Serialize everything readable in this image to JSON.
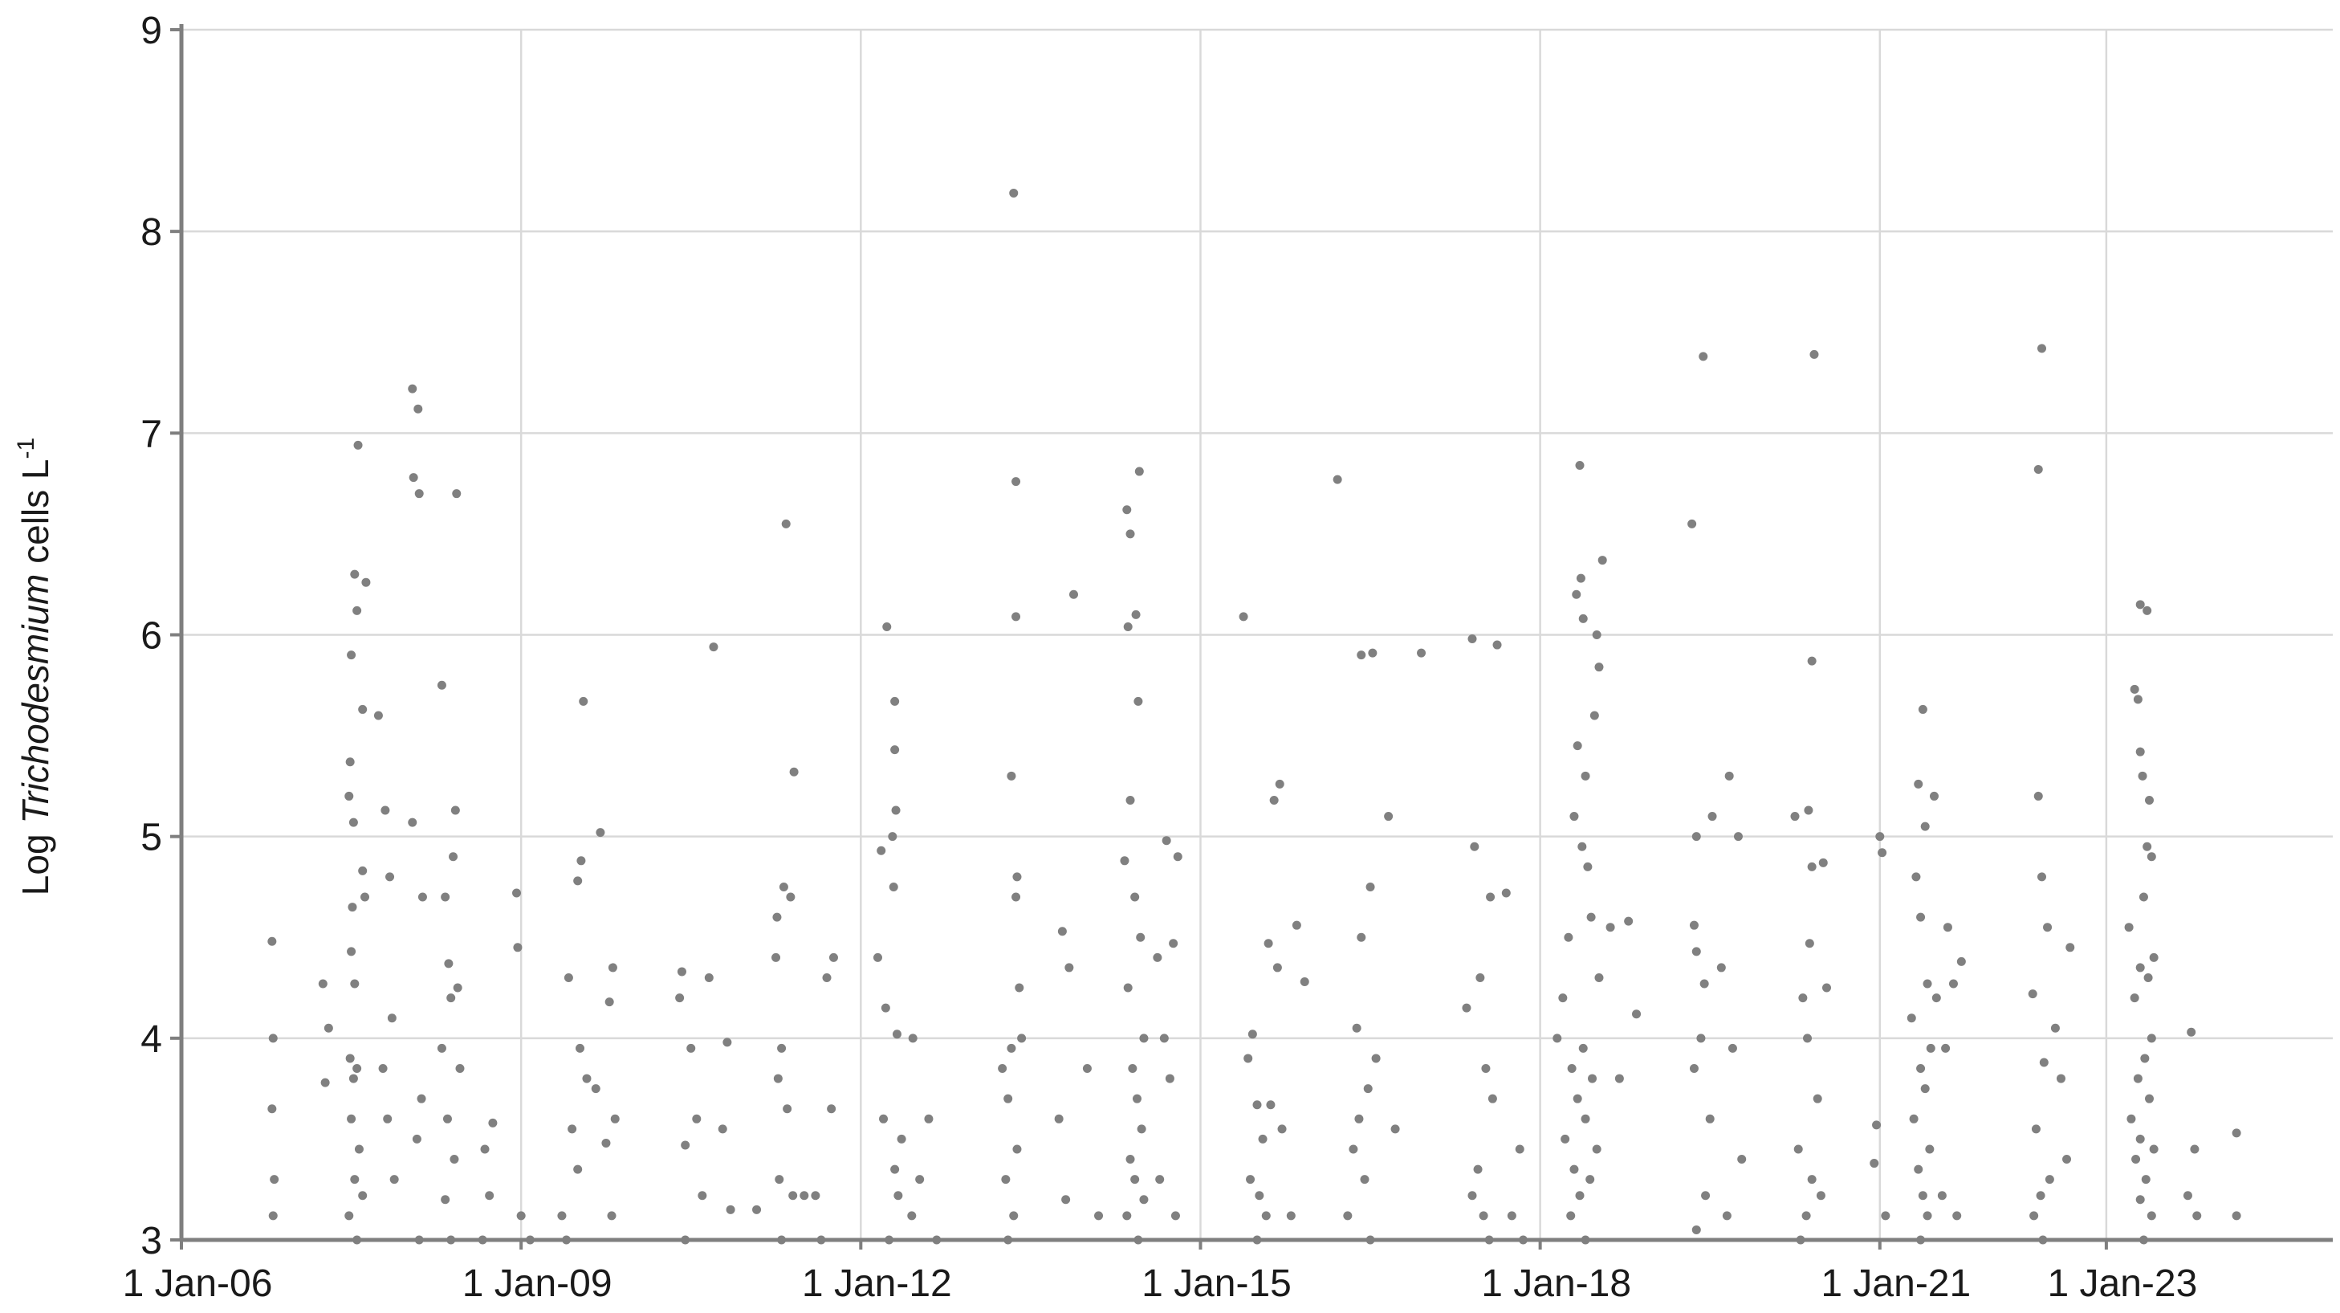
{
  "chart_data": {
    "type": "scatter",
    "y_label": {
      "prefix": "Log",
      "species": "Trichodesmium",
      "suffix": "cells L",
      "exponent": "-1"
    },
    "color": "#808080",
    "grid": true,
    "xlim": [
      2006,
      2025
    ],
    "ylim": [
      3,
      9
    ],
    "yticks": [
      3,
      4,
      5,
      6,
      7,
      8,
      9
    ],
    "xticks": [
      {
        "value": 2006,
        "label": "1 Jan-06"
      },
      {
        "value": 2009,
        "label": "1 Jan-09"
      },
      {
        "value": 2012,
        "label": "1 Jan-12"
      },
      {
        "value": 2015,
        "label": "1 Jan-15"
      },
      {
        "value": 2018,
        "label": "1 Jan-18"
      },
      {
        "value": 2021,
        "label": "1 Jan-21"
      },
      {
        "value": 2023,
        "label": "1 Jan-23"
      }
    ],
    "x": [
      2006.8,
      2006.81,
      2006.8,
      2006.82,
      2006.81,
      2007.25,
      2007.27,
      2007.3,
      2007.56,
      2007.53,
      2007.55,
      2007.5,
      2007.49,
      2007.48,
      2007.52,
      2007.6,
      2007.51,
      2007.5,
      2007.53,
      2007.49,
      2007.55,
      2007.52,
      2007.5,
      2007.57,
      2007.53,
      2007.6,
      2007.48,
      2007.55,
      2007.63,
      2007.6,
      2007.62,
      2007.74,
      2007.8,
      2007.84,
      2007.86,
      2007.78,
      2007.82,
      2007.88,
      2008.04,
      2008.09,
      2008.05,
      2008.1,
      2008.04,
      2008.13,
      2008.12,
      2008.08,
      2008.1,
      2008.3,
      2008.42,
      2008.4,
      2008.33,
      2008.36,
      2008.44,
      2008.38,
      2008.3,
      2008.46,
      2008.35,
      2008.41,
      2008.33,
      2008.38,
      2008.43,
      2008.75,
      2008.68,
      2008.72,
      2008.66,
      2008.96,
      2008.97,
      2009.0,
      2009.08,
      2009.55,
      2009.53,
      2009.5,
      2009.42,
      2009.52,
      2009.58,
      2009.45,
      2009.5,
      2009.36,
      2009.4,
      2009.7,
      2009.81,
      2009.78,
      2009.66,
      2009.83,
      2009.75,
      2009.8,
      2010.42,
      2010.4,
      2010.5,
      2010.55,
      2010.45,
      2010.6,
      2010.45,
      2010.7,
      2010.66,
      2010.82,
      2010.78,
      2010.85,
      2011.08,
      2011.32,
      2011.26,
      2011.25,
      2011.3,
      2011.27,
      2011.35,
      2011.28,
      2011.4,
      2011.3,
      2011.34,
      2011.41,
      2011.38,
      2011.5,
      2011.76,
      2011.7,
      2011.74,
      2011.6,
      2011.65,
      2012.23,
      2012.3,
      2012.3,
      2012.31,
      2012.28,
      2012.18,
      2012.29,
      2012.15,
      2012.22,
      2012.32,
      2012.2,
      2012.36,
      2012.3,
      2012.33,
      2012.25,
      2012.46,
      2012.6,
      2012.52,
      2012.45,
      2012.67,
      2013.35,
      2013.37,
      2013.37,
      2013.33,
      2013.38,
      2013.37,
      2013.4,
      2013.42,
      2013.33,
      2013.25,
      2013.3,
      2013.38,
      2013.28,
      2013.35,
      2013.3,
      2013.78,
      2013.84,
      2013.88,
      2013.75,
      2013.81,
      2014.0,
      2014.1,
      2014.35,
      2014.38,
      2014.36,
      2014.43,
      2014.46,
      2014.45,
      2014.38,
      2014.33,
      2014.42,
      2014.47,
      2014.36,
      2014.5,
      2014.4,
      2014.44,
      2014.48,
      2014.38,
      2014.42,
      2014.5,
      2014.35,
      2014.45,
      2014.7,
      2014.8,
      2014.76,
      2014.62,
      2014.68,
      2014.73,
      2014.64,
      2014.78,
      2015.38,
      2015.46,
      2015.42,
      2015.5,
      2015.55,
      2015.44,
      2015.52,
      2015.58,
      2015.5,
      2015.7,
      2015.65,
      2015.6,
      2015.68,
      2015.62,
      2015.72,
      2015.8,
      2015.85,
      2015.92,
      2016.21,
      2016.5,
      2016.42,
      2016.38,
      2016.55,
      2016.48,
      2016.4,
      2016.35,
      2016.45,
      2016.3,
      2016.5,
      2016.42,
      2016.52,
      2016.66,
      2016.72,
      2016.95,
      2017.4,
      2017.62,
      2017.42,
      2017.56,
      2017.47,
      2017.35,
      2017.52,
      2017.58,
      2017.45,
      2017.4,
      2017.5,
      2017.55,
      2017.7,
      2017.82,
      2017.75,
      2017.85,
      2018.35,
      2018.55,
      2018.36,
      2018.32,
      2018.38,
      2018.5,
      2018.52,
      2018.48,
      2018.33,
      2018.4,
      2018.3,
      2018.37,
      2018.42,
      2018.45,
      2018.25,
      2018.52,
      2018.2,
      2018.15,
      2018.38,
      2018.28,
      2018.46,
      2018.33,
      2018.4,
      2018.22,
      2018.5,
      2018.3,
      2018.44,
      2018.35,
      2018.27,
      2018.4,
      2018.78,
      2018.62,
      2018.85,
      2018.7,
      2019.34,
      2019.44,
      2019.38,
      2019.36,
      2019.38,
      2019.45,
      2019.42,
      2019.36,
      2019.5,
      2019.46,
      2019.38,
      2019.67,
      2019.52,
      2019.75,
      2019.6,
      2019.7,
      2019.78,
      2019.65,
      2020.42,
      2020.4,
      2020.37,
      2020.25,
      2020.4,
      2020.38,
      2020.32,
      2020.36,
      2020.45,
      2020.28,
      2020.4,
      2020.48,
      2020.35,
      2020.3,
      2020.5,
      2020.53,
      2021.0,
      2021.02,
      2020.97,
      2020.95,
      2021.05,
      2021.38,
      2021.34,
      2021.48,
      2021.4,
      2021.32,
      2021.36,
      2021.42,
      2021.5,
      2021.28,
      2021.45,
      2021.36,
      2021.4,
      2021.3,
      2021.44,
      2021.34,
      2021.38,
      2021.42,
      2021.36,
      2021.6,
      2021.72,
      2021.65,
      2021.58,
      2021.55,
      2021.68,
      2022.43,
      2022.4,
      2022.4,
      2022.43,
      2022.48,
      2022.35,
      2022.45,
      2022.38,
      2022.5,
      2022.42,
      2022.36,
      2022.44,
      2022.68,
      2022.55,
      2022.6,
      2022.65,
      2023.3,
      2023.36,
      2023.25,
      2023.28,
      2023.3,
      2023.32,
      2023.38,
      2023.36,
      2023.4,
      2023.33,
      2023.2,
      2023.42,
      2023.3,
      2023.37,
      2023.25,
      2023.4,
      2023.34,
      2023.28,
      2023.38,
      2023.22,
      2023.3,
      2023.42,
      2023.26,
      2023.35,
      2023.3,
      2023.4,
      2023.33,
      2023.75,
      2023.78,
      2023.72,
      2023.8,
      2024.15,
      2024.15
    ],
    "values": [
      4.48,
      4.0,
      3.65,
      3.3,
      3.12,
      4.27,
      3.78,
      4.05,
      6.94,
      6.3,
      6.12,
      5.9,
      5.37,
      5.2,
      5.07,
      4.83,
      4.65,
      4.43,
      4.27,
      3.9,
      3.85,
      3.8,
      3.6,
      3.45,
      3.3,
      3.22,
      3.12,
      3.0,
      6.26,
      5.63,
      4.7,
      5.6,
      5.13,
      4.8,
      4.1,
      3.85,
      3.6,
      3.3,
      7.22,
      7.12,
      6.78,
      6.7,
      5.07,
      4.7,
      3.7,
      3.5,
      3.0,
      5.75,
      5.13,
      4.9,
      4.7,
      4.37,
      4.25,
      4.2,
      3.95,
      3.85,
      3.6,
      3.4,
      3.2,
      3.0,
      6.7,
      3.58,
      3.45,
      3.22,
      3.0,
      4.72,
      4.45,
      3.12,
      3.0,
      5.67,
      4.88,
      4.78,
      4.3,
      3.95,
      3.8,
      3.55,
      3.35,
      3.12,
      3.0,
      5.02,
      4.35,
      4.18,
      3.75,
      3.6,
      3.48,
      3.12,
      4.33,
      4.2,
      3.95,
      3.6,
      3.47,
      3.22,
      3.0,
      5.94,
      4.3,
      3.98,
      3.55,
      3.15,
      3.15,
      4.75,
      4.6,
      4.4,
      3.95,
      3.8,
      3.65,
      3.3,
      3.22,
      3.0,
      6.55,
      5.32,
      4.7,
      3.22,
      4.4,
      4.3,
      3.65,
      3.22,
      3.0,
      6.04,
      5.67,
      5.43,
      5.13,
      5.0,
      4.93,
      4.75,
      4.4,
      4.15,
      4.02,
      3.6,
      3.5,
      3.35,
      3.22,
      3.0,
      4.0,
      3.6,
      3.3,
      3.12,
      3.0,
      8.19,
      6.76,
      6.09,
      5.3,
      4.8,
      4.7,
      4.25,
      4.0,
      3.95,
      3.85,
      3.7,
      3.45,
      3.3,
      3.12,
      3.0,
      4.53,
      4.35,
      6.2,
      3.6,
      3.2,
      3.85,
      3.12,
      6.62,
      6.5,
      6.04,
      6.1,
      6.81,
      5.67,
      5.18,
      4.88,
      4.7,
      4.5,
      4.25,
      4.0,
      3.85,
      3.7,
      3.55,
      3.4,
      3.3,
      3.2,
      3.12,
      3.0,
      4.98,
      4.9,
      4.47,
      4.4,
      4.0,
      3.8,
      3.3,
      3.12,
      6.09,
      4.02,
      3.9,
      3.67,
      3.5,
      3.3,
      3.22,
      3.12,
      3.0,
      5.26,
      5.18,
      4.47,
      4.35,
      3.67,
      3.55,
      3.12,
      4.56,
      4.28,
      6.77,
      4.75,
      4.5,
      4.05,
      3.9,
      3.75,
      3.6,
      3.45,
      3.3,
      3.12,
      3.0,
      5.9,
      5.91,
      5.1,
      3.55,
      5.91,
      5.98,
      5.95,
      4.95,
      4.7,
      4.3,
      4.15,
      3.85,
      3.7,
      3.35,
      3.22,
      3.12,
      3.0,
      4.72,
      3.45,
      3.12,
      3.0,
      6.84,
      6.37,
      6.28,
      6.2,
      6.08,
      6.0,
      5.84,
      5.6,
      5.45,
      5.3,
      5.1,
      4.95,
      4.85,
      4.6,
      4.5,
      4.3,
      4.2,
      4.0,
      3.95,
      3.85,
      3.8,
      3.7,
      3.6,
      3.5,
      3.45,
      3.35,
      3.3,
      3.22,
      3.12,
      3.0,
      4.58,
      4.55,
      4.12,
      3.8,
      6.55,
      7.38,
      5.0,
      4.56,
      4.43,
      4.27,
      4.0,
      3.85,
      3.6,
      3.22,
      3.05,
      5.3,
      5.1,
      5.0,
      4.35,
      3.95,
      3.4,
      3.12,
      7.39,
      5.87,
      5.13,
      5.1,
      4.85,
      4.47,
      4.2,
      4.0,
      3.7,
      3.45,
      3.3,
      3.22,
      3.12,
      3.0,
      4.87,
      4.25,
      5.0,
      4.92,
      3.57,
      3.38,
      3.12,
      5.63,
      5.26,
      5.2,
      5.05,
      4.8,
      4.6,
      4.27,
      4.2,
      4.1,
      3.95,
      3.85,
      3.75,
      3.6,
      3.45,
      3.35,
      3.22,
      3.12,
      3.0,
      4.55,
      4.38,
      4.27,
      3.95,
      3.22,
      3.12,
      7.42,
      6.82,
      5.2,
      4.8,
      4.55,
      4.22,
      3.88,
      3.55,
      3.3,
      3.22,
      3.12,
      3.0,
      4.45,
      4.05,
      3.8,
      3.4,
      6.15,
      6.12,
      5.73,
      5.68,
      5.42,
      5.3,
      5.18,
      4.95,
      4.9,
      4.7,
      4.55,
      4.4,
      4.35,
      4.3,
      4.2,
      4.0,
      3.9,
      3.8,
      3.7,
      3.6,
      3.5,
      3.45,
      3.4,
      3.3,
      3.2,
      3.12,
      3.0,
      4.03,
      3.45,
      3.22,
      3.12,
      3.53,
      3.12
    ]
  }
}
